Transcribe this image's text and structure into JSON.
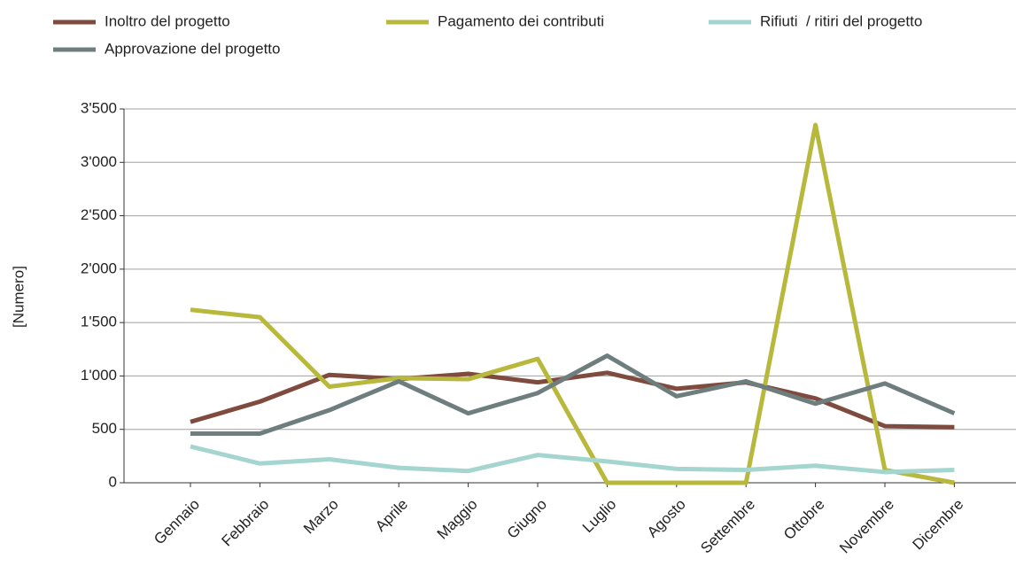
{
  "chart_data": {
    "type": "line",
    "y_label": "[Numero]",
    "categories": [
      "Gennaio",
      "Febbraio",
      "Marzo",
      "Aprile",
      "Maggio",
      "Giugno",
      "Luglio",
      "Agosto",
      "Settembre",
      "Ottobre",
      "Novembre",
      "Dicembre"
    ],
    "series": [
      {
        "name": "Inoltro del progetto",
        "color": "#7f4b3e",
        "values": [
          570,
          760,
          1010,
          970,
          1020,
          940,
          1030,
          880,
          940,
          790,
          530,
          520
        ]
      },
      {
        "name": "Pagamento dei contributi",
        "color": "#b7b83c",
        "values": [
          1620,
          1550,
          900,
          980,
          970,
          1160,
          0,
          0,
          0,
          3350,
          120,
          0
        ]
      },
      {
        "name": "Rifiuti  / ritiri del progetto",
        "color": "#a5d5cf",
        "values": [
          340,
          180,
          220,
          140,
          110,
          260,
          200,
          130,
          120,
          160,
          100,
          120
        ]
      },
      {
        "name": "Approvazione del progetto",
        "color": "#6e7d7d",
        "values": [
          460,
          460,
          680,
          950,
          650,
          840,
          1190,
          810,
          950,
          740,
          930,
          650
        ]
      }
    ],
    "ylim": [
      0,
      3500
    ],
    "yticks": [
      0,
      500,
      {
        "value": 1000,
        "label": "1'000"
      },
      {
        "value": 1500,
        "label": "1'500"
      },
      {
        "value": 2000,
        "label": "2'000"
      },
      {
        "value": 2500,
        "label": "2'500"
      },
      {
        "value": 3000,
        "label": "3'000"
      },
      {
        "value": 3500,
        "label": "3'500"
      }
    ],
    "grid": true,
    "legend": "top"
  }
}
